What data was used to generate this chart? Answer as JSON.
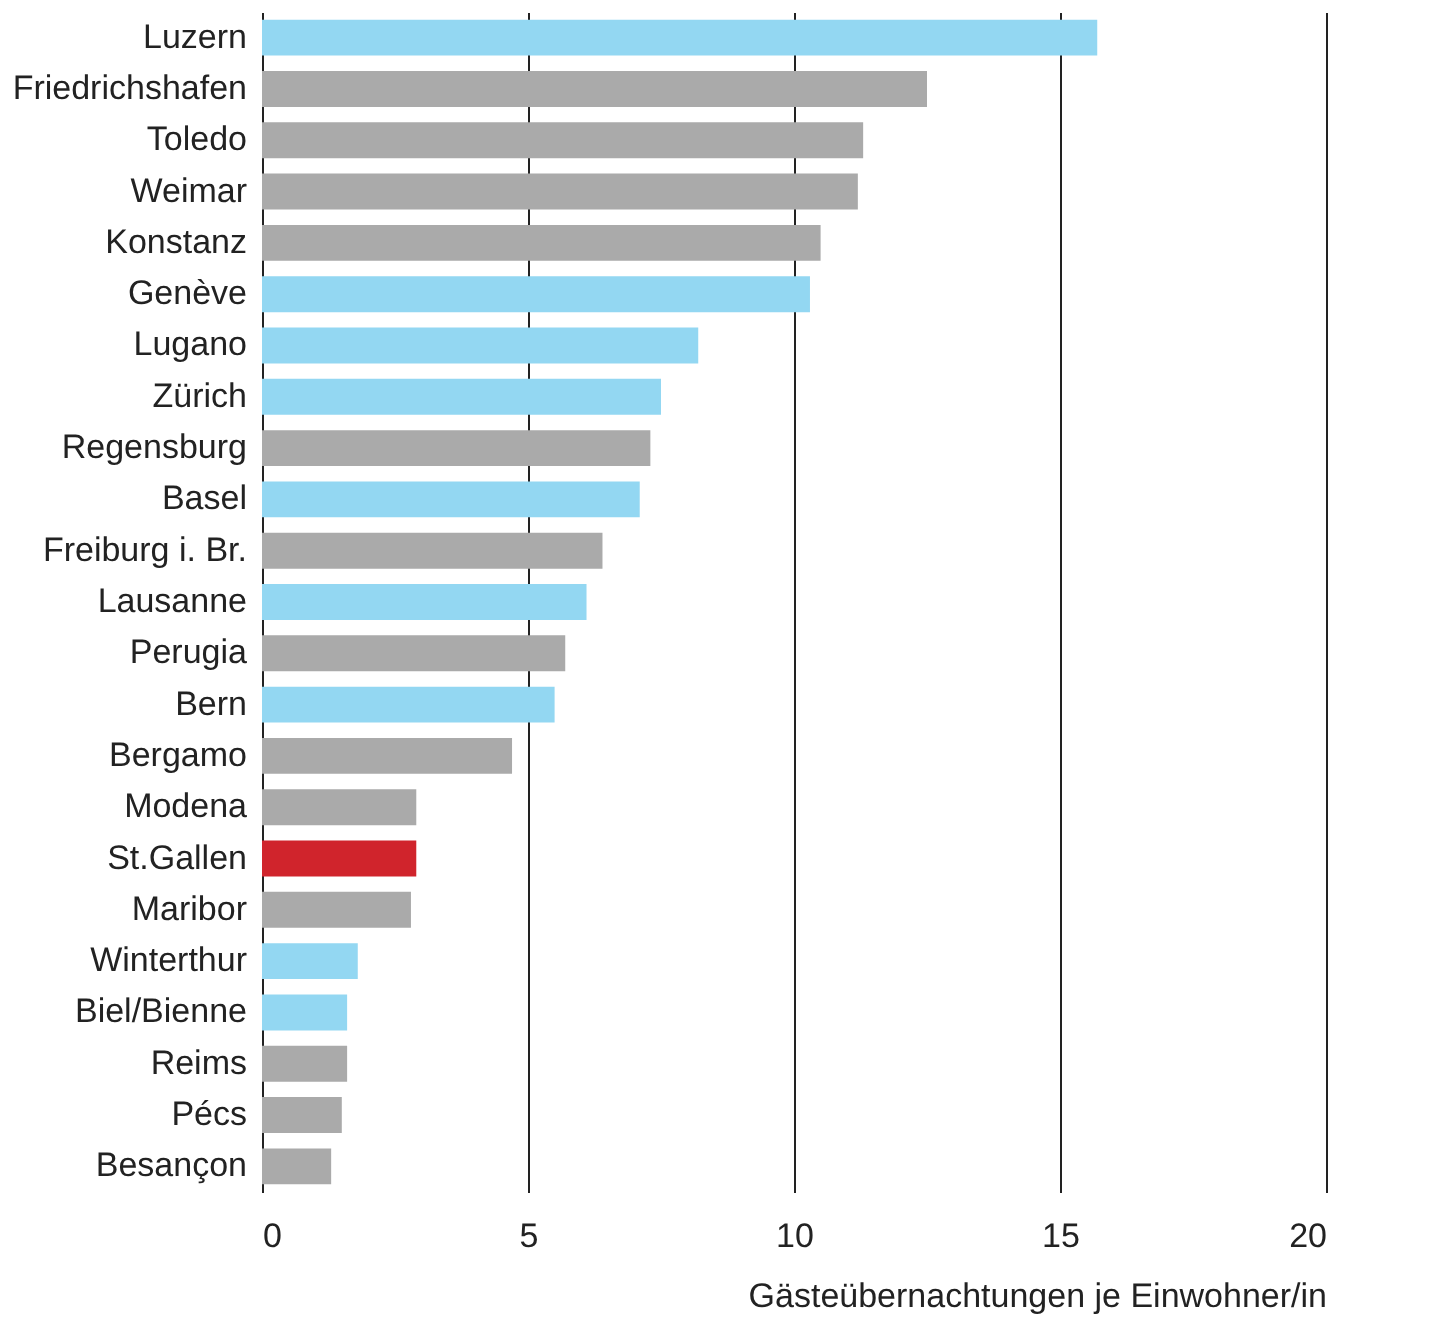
{
  "chart_data": {
    "type": "bar",
    "orientation": "horizontal",
    "xlabel": "Gästeübernachtungen je Einwohner/in",
    "categories": [
      "Luzern",
      "Friedrichshafen",
      "Toledo",
      "Weimar",
      "Konstanz",
      "Genève",
      "Lugano",
      "Zürich",
      "Regensburg",
      "Basel",
      "Freiburg i. Br.",
      "Lausanne",
      "Perugia",
      "Bern",
      "Bergamo",
      "Modena",
      "St.Gallen",
      "Maribor",
      "Winterthur",
      "Biel/Bienne",
      "Reims",
      "Pécs",
      "Besançon"
    ],
    "values": [
      15.7,
      12.5,
      11.3,
      11.2,
      10.5,
      10.3,
      8.2,
      7.5,
      7.3,
      7.1,
      6.4,
      6.1,
      5.7,
      5.5,
      4.7,
      2.9,
      2.9,
      2.8,
      1.8,
      1.6,
      1.6,
      1.5,
      1.3
    ],
    "colors": [
      "#93d7f2",
      "#aaaaaa",
      "#aaaaaa",
      "#aaaaaa",
      "#aaaaaa",
      "#93d7f2",
      "#93d7f2",
      "#93d7f2",
      "#aaaaaa",
      "#93d7f2",
      "#aaaaaa",
      "#93d7f2",
      "#aaaaaa",
      "#93d7f2",
      "#aaaaaa",
      "#aaaaaa",
      "#d0242c",
      "#aaaaaa",
      "#93d7f2",
      "#93d7f2",
      "#aaaaaa",
      "#aaaaaa",
      "#aaaaaa"
    ],
    "xlim": [
      0,
      20
    ],
    "xticks": [
      0,
      5,
      10,
      15,
      20
    ],
    "grid": "x"
  }
}
